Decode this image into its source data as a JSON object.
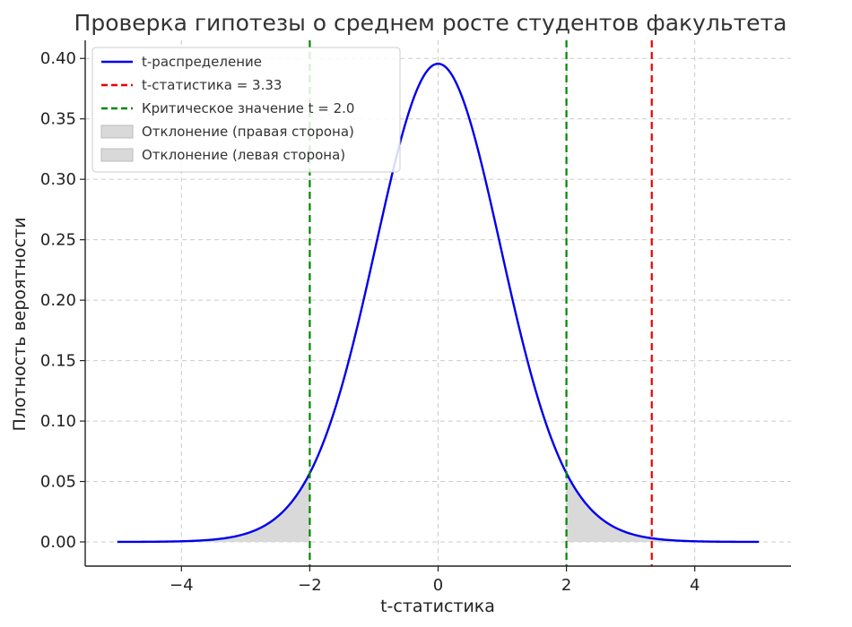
{
  "chart_data": {
    "type": "line",
    "title": "Проверка гипотезы о среднем росте студентов факультета",
    "xlabel": "t-статистика",
    "ylabel": "Плотность вероятности",
    "xlim": [
      -5.5,
      5.5
    ],
    "ylim": [
      -0.02,
      0.415
    ],
    "x_ticks": [
      -4,
      -2,
      0,
      2,
      4
    ],
    "x_tick_labels": [
      "−4",
      "−2",
      "0",
      "2",
      "4"
    ],
    "y_ticks": [
      0.0,
      0.05,
      0.1,
      0.15,
      0.2,
      0.25,
      0.3,
      0.35,
      0.4
    ],
    "y_tick_labels": [
      "0.00",
      "0.05",
      "0.10",
      "0.15",
      "0.20",
      "0.25",
      "0.30",
      "0.35",
      "0.40"
    ],
    "grid": true,
    "legend_position": "top-left",
    "distribution": {
      "name": "t-распределение",
      "df": 30,
      "x_range": [
        -5,
        5
      ],
      "color": "#0000ee"
    },
    "t_statistic": {
      "name": "t-статистика = 3.33",
      "value": 3.33,
      "color": "#ee0000"
    },
    "critical_values": {
      "name": "Критическое значение t = 2.0",
      "values": [
        -2.0,
        2.0
      ],
      "color": "#008800"
    },
    "rejection_regions": [
      {
        "name": "Отклонение (правая сторона)",
        "from": 2.0,
        "to": 5.0,
        "color": "#d9d9d9"
      },
      {
        "name": "Отклонение (левая сторона)",
        "from": -5.0,
        "to": -2.0,
        "color": "#d9d9d9"
      }
    ]
  }
}
